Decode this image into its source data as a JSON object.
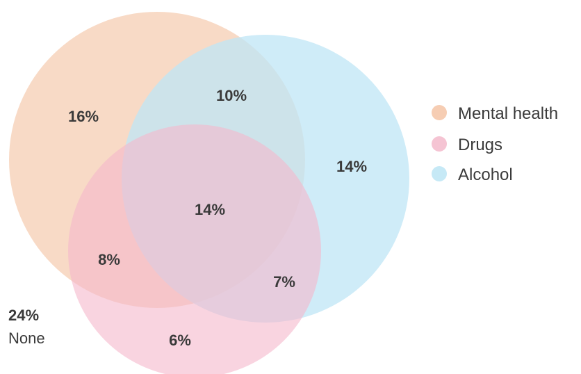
{
  "sets": [
    {
      "key": "mental",
      "name": "Mental health",
      "color": "#f6cdb3"
    },
    {
      "key": "drugs",
      "name": "Drugs",
      "color": "#f5b8cc"
    },
    {
      "key": "alcohol",
      "name": "Alcohol",
      "color": "#bfe6f5"
    }
  ],
  "regions": {
    "mental_only": "16%",
    "mental_alcohol": "10%",
    "alcohol_only": "14%",
    "all_three": "14%",
    "mental_drugs": "8%",
    "drugs_alcohol": "7%",
    "drugs_only": "6%"
  },
  "none": {
    "value": "24%",
    "label": "None"
  }
}
